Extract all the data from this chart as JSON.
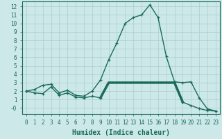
{
  "x": [
    0,
    1,
    2,
    3,
    4,
    5,
    6,
    7,
    8,
    9,
    10,
    11,
    12,
    13,
    14,
    15,
    16,
    17,
    18,
    19,
    20,
    21,
    22,
    23
  ],
  "line1_y": [
    2.0,
    2.2,
    2.7,
    2.8,
    1.8,
    2.1,
    1.5,
    1.4,
    2.0,
    3.3,
    5.7,
    7.7,
    10.0,
    10.7,
    11.0,
    12.2,
    10.7,
    6.1,
    3.1,
    3.0,
    3.1,
    1.2,
    -0.1,
    -0.35
  ],
  "line2_y": [
    2.0,
    1.8,
    1.7,
    2.5,
    1.5,
    1.8,
    1.3,
    1.2,
    1.4,
    1.2,
    3.0,
    3.0,
    3.0,
    3.0,
    3.0,
    3.0,
    3.0,
    3.0,
    3.0,
    0.7,
    0.3,
    -0.05,
    -0.3,
    -0.35
  ],
  "line_color": "#1a6b5a",
  "bg_color": "#cce8e8",
  "grid_color": "#aacece",
  "xlabel": "Humidex (Indice chaleur)",
  "xlim": [
    -0.5,
    23.5
  ],
  "ylim": [
    -0.7,
    12.6
  ],
  "yticks": [
    0,
    1,
    2,
    3,
    4,
    5,
    6,
    7,
    8,
    9,
    10,
    11,
    12
  ],
  "ytick_labels": [
    "-0",
    "1",
    "2",
    "3",
    "4",
    "5",
    "6",
    "7",
    "8",
    "9",
    "10",
    "11",
    "12"
  ],
  "xticks": [
    0,
    1,
    2,
    3,
    4,
    5,
    6,
    7,
    8,
    9,
    10,
    11,
    12,
    13,
    14,
    15,
    16,
    17,
    18,
    19,
    20,
    21,
    22,
    23
  ],
  "tick_fontsize": 5.5,
  "label_fontsize": 7,
  "marker": "+",
  "marker_size": 3.5,
  "linewidth1": 1.0,
  "linewidth2": 2.5
}
